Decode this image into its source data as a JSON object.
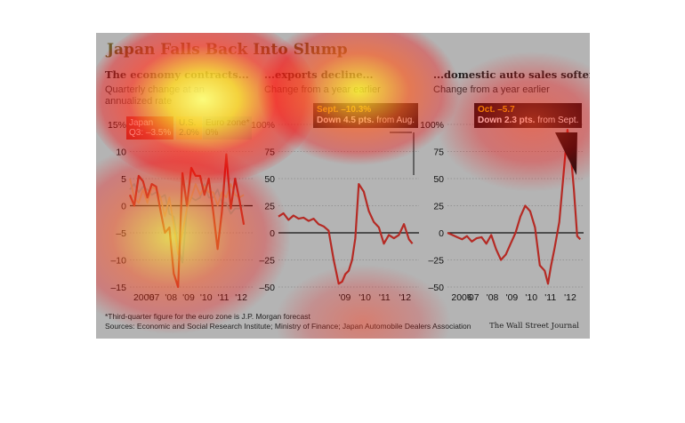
{
  "title": "Japan Falls Back Into Slump",
  "colors": {
    "line": "#b52a24",
    "us": "#c9a472",
    "euro": "#8da6a4",
    "background": "#b4b4b4"
  },
  "panels": [
    {
      "title": "The economy contracts...",
      "subtitle": "Quarterly change at an annualized rate",
      "legend": [
        {
          "name": "Japan",
          "value": "Q3: –3.5%"
        },
        {
          "name": "U.S.",
          "value": "2.0%"
        },
        {
          "name": "Euro zone*",
          "value": "0%"
        }
      ]
    },
    {
      "title": "...exports decline...",
      "subtitle": "Change from a year earlier",
      "callout": {
        "line1": "Sept. –10.3%",
        "line2_bold": "Down 4.5 pts.",
        "line2_rest": " from Aug."
      }
    },
    {
      "title": "...domestic auto sales soften.",
      "subtitle": "Change from a year earlier",
      "callout": {
        "line1": "Oct. –5.7",
        "line2_bold": "Down 2.3 pts.",
        "line2_rest": " from Sept."
      }
    }
  ],
  "footnote": "*Third-quarter figure for the euro zone is J.P. Morgan forecast",
  "sources": "Sources: Economic and Social Research Institute; Ministry of Finance; Japan Automobile Dealers Association",
  "credit": "The Wall Street Journal",
  "chart_data": [
    {
      "type": "line",
      "title": "The economy contracts...",
      "subtitle": "Quarterly change at an annualized rate",
      "x_ticks": [
        "2006",
        "'07",
        "'08",
        "'09",
        "'10",
        "'11",
        "'12"
      ],
      "xlim": [
        2006.0,
        2013.0
      ],
      "y_ticks": [
        "15%",
        "10",
        "5",
        "0",
        "–5",
        "–10",
        "–15"
      ],
      "ylim": [
        -15,
        15
      ],
      "grid": "horizontal",
      "series": [
        {
          "name": "Japan",
          "color": "#b52a24",
          "x": [
            2006.0,
            2006.25,
            2006.5,
            2006.75,
            2007.0,
            2007.25,
            2007.5,
            2007.75,
            2008.0,
            2008.25,
            2008.5,
            2008.75,
            2009.0,
            2009.25,
            2009.5,
            2009.75,
            2010.0,
            2010.25,
            2010.5,
            2010.75,
            2011.0,
            2011.25,
            2011.5,
            2011.75,
            2012.0,
            2012.25,
            2012.5
          ],
          "y": [
            2.0,
            0.0,
            5.5,
            4.5,
            1.5,
            4.0,
            3.5,
            -1.0,
            -5.0,
            -4.0,
            -12.5,
            -15.0,
            6.0,
            0.0,
            7.0,
            5.5,
            5.5,
            2.0,
            5.0,
            -1.0,
            -8.0,
            -1.0,
            9.5,
            -0.5,
            5.0,
            1.0,
            -3.5
          ]
        },
        {
          "name": "U.S.",
          "color": "#c9a472",
          "x": [
            2006.0,
            2006.25,
            2006.5,
            2006.75,
            2007.0,
            2007.25,
            2007.5,
            2007.75,
            2008.0,
            2008.25,
            2008.5,
            2008.75,
            2009.0,
            2009.25,
            2009.5,
            2009.75,
            2010.0,
            2010.25,
            2010.5,
            2010.75,
            2011.0,
            2011.25,
            2011.5,
            2011.75,
            2012.0,
            2012.25,
            2012.5
          ],
          "y": [
            5.0,
            1.5,
            0.5,
            3.0,
            0.5,
            3.5,
            3.0,
            1.5,
            -2.0,
            1.5,
            -3.5,
            -9.0,
            -5.0,
            -0.5,
            1.5,
            4.0,
            2.0,
            3.5,
            2.5,
            2.5,
            0.0,
            2.5,
            1.5,
            4.0,
            2.0,
            1.5,
            2.0
          ]
        },
        {
          "name": "Euro zone*",
          "color": "#8da6a4",
          "x": [
            2006.0,
            2006.25,
            2006.5,
            2006.75,
            2007.0,
            2007.25,
            2007.5,
            2007.75,
            2008.0,
            2008.25,
            2008.5,
            2008.75,
            2009.0,
            2009.25,
            2009.5,
            2009.75,
            2010.0,
            2010.25,
            2010.5,
            2010.75,
            2011.0,
            2011.25,
            2011.5,
            2011.75,
            2012.0,
            2012.25,
            2012.5
          ],
          "y": [
            3.0,
            4.0,
            2.5,
            3.5,
            3.0,
            2.0,
            2.5,
            1.5,
            2.0,
            -1.5,
            -2.0,
            -7.5,
            -10.5,
            -0.5,
            1.5,
            1.0,
            1.5,
            4.0,
            1.5,
            1.5,
            3.0,
            0.5,
            0.5,
            -1.5,
            -0.5,
            -0.5,
            0.0
          ]
        }
      ]
    },
    {
      "type": "line",
      "title": "...exports decline...",
      "subtitle": "Change from a year earlier",
      "x_ticks": [
        "'09",
        "'10",
        "'11",
        "'12"
      ],
      "xlim": [
        2006.0,
        2013.0
      ],
      "y_ticks": [
        "100%",
        "75",
        "50",
        "25",
        "0",
        "–25",
        "–50"
      ],
      "ylim": [
        -50,
        100
      ],
      "grid": "horizontal",
      "series": [
        {
          "name": "Exports",
          "color": "#b52a24",
          "x": [
            2006.0,
            2006.25,
            2006.5,
            2006.75,
            2007.0,
            2007.25,
            2007.5,
            2007.75,
            2008.0,
            2008.25,
            2008.5,
            2008.75,
            2009.0,
            2009.17,
            2009.33,
            2009.5,
            2009.67,
            2009.83,
            2010.0,
            2010.25,
            2010.5,
            2010.75,
            2011.0,
            2011.25,
            2011.5,
            2011.75,
            2012.0,
            2012.25,
            2012.5,
            2012.67
          ],
          "y": [
            15,
            18,
            12,
            16,
            13,
            14,
            11,
            13,
            8,
            6,
            2,
            -25,
            -47,
            -45,
            -38,
            -35,
            -25,
            -5,
            45,
            38,
            20,
            10,
            5,
            -10,
            -2,
            -5,
            -2,
            8,
            -6,
            -10
          ]
        }
      ]
    },
    {
      "type": "line",
      "title": "...domestic auto sales soften.",
      "subtitle": "Change from a year earlier",
      "x_ticks": [
        "2006",
        "'07",
        "'08",
        "'09",
        "'10",
        "'11",
        "'12"
      ],
      "xlim": [
        2006.0,
        2013.0
      ],
      "y_ticks": [
        "100%",
        "75",
        "50",
        "25",
        "0",
        "–25",
        "–50"
      ],
      "ylim": [
        -50,
        100
      ],
      "grid": "horizontal",
      "series": [
        {
          "name": "Auto sales",
          "color": "#b52a24",
          "x": [
            2006.0,
            2006.25,
            2006.5,
            2006.75,
            2007.0,
            2007.25,
            2007.5,
            2007.75,
            2008.0,
            2008.25,
            2008.5,
            2008.75,
            2009.0,
            2009.25,
            2009.5,
            2009.75,
            2010.0,
            2010.25,
            2010.5,
            2010.75,
            2011.0,
            2011.17,
            2011.33,
            2011.5,
            2011.75,
            2012.0,
            2012.17,
            2012.33,
            2012.5,
            2012.67,
            2012.83
          ],
          "y": [
            0,
            -2,
            -4,
            -6,
            -3,
            -8,
            -5,
            -4,
            -10,
            -2,
            -15,
            -25,
            -20,
            -10,
            0,
            15,
            25,
            20,
            5,
            -30,
            -35,
            -47,
            -30,
            -15,
            10,
            60,
            95,
            75,
            40,
            -3,
            -6
          ]
        }
      ]
    }
  ]
}
